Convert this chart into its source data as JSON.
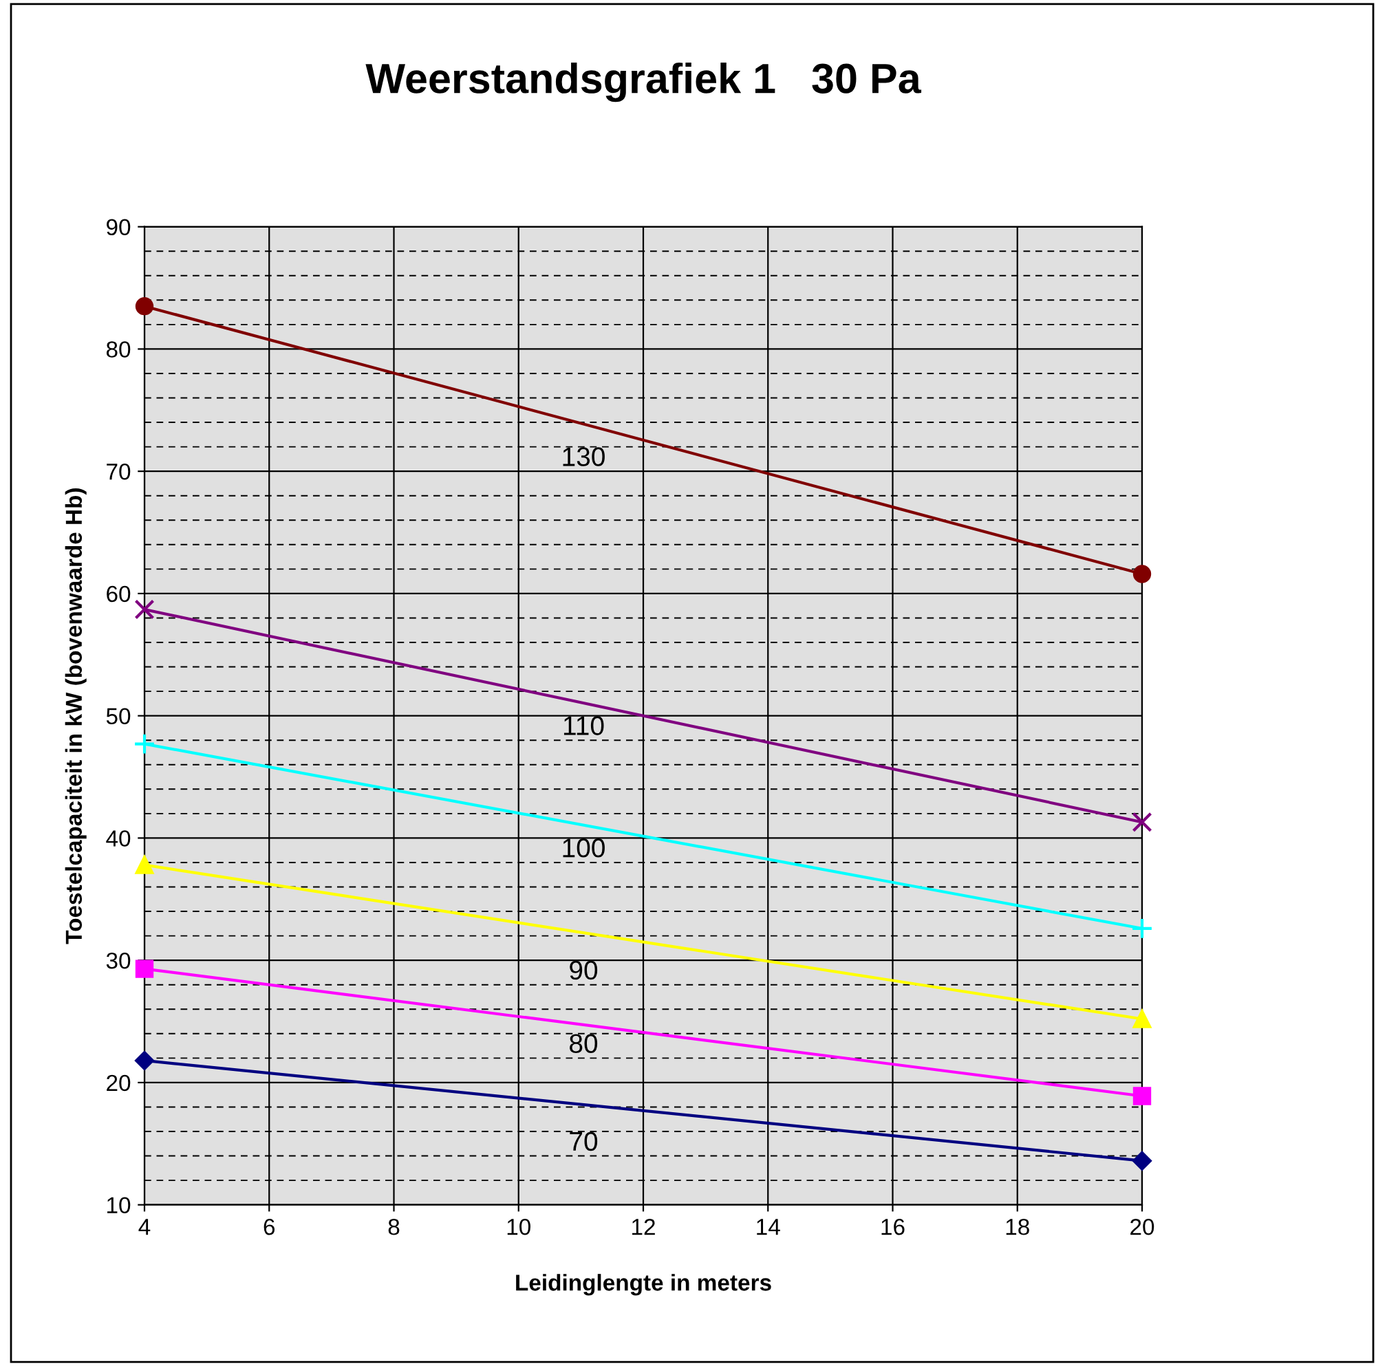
{
  "chart_data": {
    "type": "line",
    "title": "Weerstandsgrafiek 1   30 Pa",
    "xlabel": "Leidinglengte in meters",
    "ylabel": "Toestelcapaciteit in kW (bovenwaarde Hb)",
    "x": [
      4,
      20
    ],
    "xlim": [
      4,
      20
    ],
    "xticks": [
      4,
      6,
      8,
      10,
      12,
      14,
      16,
      18,
      20
    ],
    "ylim": [
      10,
      90
    ],
    "yticks": [
      10,
      20,
      30,
      40,
      50,
      60,
      70,
      80,
      90
    ],
    "grid": true,
    "series": [
      {
        "name": "70",
        "color": "#000080",
        "marker": "diamond",
        "values": [
          21.8,
          13.6
        ]
      },
      {
        "name": "80",
        "color": "#ff00ff",
        "marker": "square",
        "values": [
          29.3,
          18.9
        ]
      },
      {
        "name": "90",
        "color": "#ffff00",
        "marker": "triangle",
        "values": [
          37.8,
          25.2
        ]
      },
      {
        "name": "100",
        "color": "#00ffff",
        "marker": "plus",
        "values": [
          47.7,
          32.6
        ]
      },
      {
        "name": "110",
        "color": "#800080",
        "marker": "cross",
        "values": [
          58.7,
          41.3
        ]
      },
      {
        "name": "130",
        "color": "#800000",
        "marker": "circle",
        "values": [
          83.5,
          61.6
        ]
      }
    ]
  }
}
